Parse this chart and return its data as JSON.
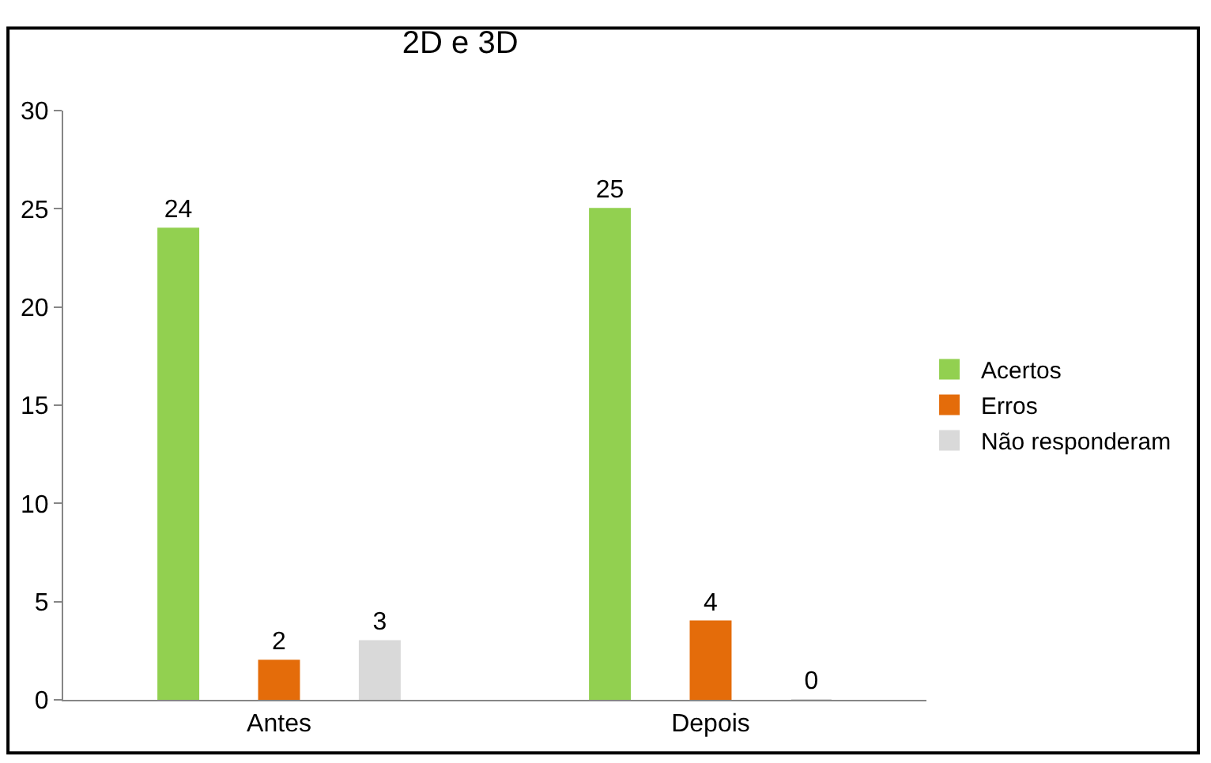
{
  "chart_data": {
    "type": "bar",
    "title": "2D e 3D",
    "categories": [
      "Antes",
      "Depois"
    ],
    "series": [
      {
        "name": "Acertos",
        "color": "#92d050",
        "values": [
          24,
          25
        ]
      },
      {
        "name": "Erros",
        "color": "#e46c0a",
        "values": [
          2,
          4
        ]
      },
      {
        "name": "Não responderam",
        "color": "#d9d9d9",
        "values": [
          3,
          0
        ]
      }
    ],
    "ylim": [
      0,
      30
    ],
    "yticks": [
      0,
      5,
      10,
      15,
      20,
      25,
      30
    ],
    "grid": false,
    "legend": "right",
    "data_labels": true
  }
}
